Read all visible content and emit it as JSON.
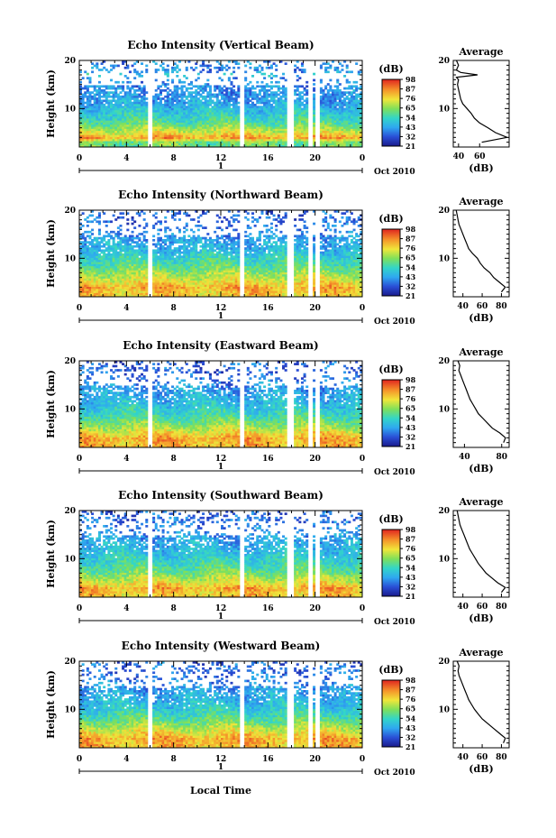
{
  "chart_data": [
    {
      "type": "heatmap",
      "title": "Echo Intensity (Vertical Beam)",
      "ylabel": "Height (km)",
      "xlim": [
        0,
        24
      ],
      "ylim": [
        2,
        20
      ],
      "x_ticks": [
        "0",
        "4",
        "8",
        "12",
        "16",
        "20",
        "0"
      ],
      "y_ticks": [
        "10",
        "20"
      ],
      "date_label": "Oct 2010",
      "day_marker": "1",
      "colorbar": {
        "unit": "(dB)",
        "ticks": [
          "98",
          "87",
          "76",
          "65",
          "54",
          "43",
          "32",
          "21"
        ],
        "range": [
          21,
          98
        ]
      },
      "data_gaps_hours": [
        [
          5.7,
          6.1
        ],
        [
          13.6,
          14.1
        ],
        [
          17.6,
          18.1
        ],
        [
          19.4,
          19.9
        ],
        [
          20.1,
          20.3
        ]
      ],
      "average_profile": {
        "title": "Average",
        "xlabel": "(dB)",
        "ylabel": "",
        "xlim": [
          35,
          88
        ],
        "x_ticks": [
          "40",
          "60"
        ],
        "y_ticks": [
          "10",
          "20"
        ],
        "height_km": [
          3,
          4,
          5,
          6,
          7,
          8,
          9,
          10,
          11,
          12,
          13,
          14,
          15,
          16,
          16.5,
          17,
          17.5,
          18,
          19,
          20
        ],
        "db": [
          62,
          86,
          75,
          68,
          60,
          55,
          52,
          48,
          44,
          42,
          41,
          40,
          39,
          40,
          38,
          58,
          42,
          38,
          40,
          38
        ]
      }
    },
    {
      "type": "heatmap",
      "title": "Echo Intensity (Northward Beam)",
      "ylabel": "Height (km)",
      "xlim": [
        0,
        24
      ],
      "ylim": [
        2,
        20
      ],
      "x_ticks": [
        "0",
        "4",
        "8",
        "12",
        "16",
        "20",
        "0"
      ],
      "y_ticks": [
        "10",
        "20"
      ],
      "date_label": "Oct 2010",
      "day_marker": "1",
      "colorbar": {
        "unit": "(dB)",
        "ticks": [
          "98",
          "87",
          "76",
          "65",
          "54",
          "43",
          "32",
          "21"
        ],
        "range": [
          21,
          98
        ]
      },
      "data_gaps_hours": [
        [
          5.7,
          6.1
        ],
        [
          13.6,
          14.1
        ],
        [
          17.6,
          18.1
        ],
        [
          19.4,
          19.9
        ],
        [
          20.1,
          20.3
        ]
      ],
      "average_profile": {
        "title": "Average",
        "xlabel": "(dB)",
        "ylabel": "",
        "xlim": [
          30,
          88
        ],
        "x_ticks": [
          "40",
          "60",
          "80"
        ],
        "y_ticks": [
          "10",
          "20"
        ],
        "height_km": [
          3,
          4,
          5,
          6,
          7,
          8,
          9,
          10,
          11,
          12,
          13,
          14,
          15,
          16,
          17,
          18,
          19,
          20
        ],
        "db": [
          80,
          84,
          78,
          72,
          68,
          62,
          58,
          55,
          50,
          46,
          44,
          42,
          40,
          38,
          36,
          35,
          34,
          33
        ]
      }
    },
    {
      "type": "heatmap",
      "title": "Echo Intensity (Eastward Beam)",
      "ylabel": "Height (km)",
      "xlim": [
        0,
        24
      ],
      "ylim": [
        2,
        20
      ],
      "x_ticks": [
        "0",
        "4",
        "8",
        "12",
        "16",
        "20",
        "0"
      ],
      "y_ticks": [
        "10",
        "20"
      ],
      "date_label": "Oct 2010",
      "day_marker": "1",
      "colorbar": {
        "unit": "(dB)",
        "ticks": [
          "98",
          "87",
          "76",
          "65",
          "54",
          "43",
          "32",
          "21"
        ],
        "range": [
          21,
          98
        ]
      },
      "data_gaps_hours": [
        [
          5.7,
          6.1
        ],
        [
          13.6,
          14.1
        ],
        [
          17.6,
          18.1
        ],
        [
          19.4,
          19.9
        ],
        [
          20.1,
          20.3
        ]
      ],
      "average_profile": {
        "title": "Average",
        "xlabel": "(dB)",
        "ylabel": "",
        "xlim": [
          28,
          88
        ],
        "x_ticks": [
          "40",
          "80"
        ],
        "y_ticks": [
          "10",
          "20"
        ],
        "height_km": [
          3,
          4,
          5,
          6,
          7,
          8,
          9,
          10,
          11,
          12,
          13,
          14,
          15,
          16,
          17,
          18,
          19,
          20
        ],
        "db": [
          82,
          84,
          78,
          70,
          65,
          60,
          55,
          52,
          49,
          46,
          44,
          42,
          40,
          38,
          36,
          34,
          35,
          33
        ]
      }
    },
    {
      "type": "heatmap",
      "title": "Echo Intensity (Southward Beam)",
      "ylabel": "Height (km)",
      "xlim": [
        0,
        24
      ],
      "ylim": [
        2,
        20
      ],
      "x_ticks": [
        "0",
        "4",
        "8",
        "12",
        "16",
        "20",
        "0"
      ],
      "y_ticks": [
        "10",
        "20"
      ],
      "date_label": "Oct 2010",
      "day_marker": "1",
      "colorbar": {
        "unit": "(dB)",
        "ticks": [
          "98",
          "87",
          "76",
          "65",
          "54",
          "43",
          "32",
          "21"
        ],
        "range": [
          21,
          98
        ]
      },
      "data_gaps_hours": [
        [
          5.7,
          6.1
        ],
        [
          13.6,
          14.1
        ],
        [
          17.6,
          18.1
        ],
        [
          19.4,
          19.9
        ],
        [
          20.1,
          20.3
        ]
      ],
      "average_profile": {
        "title": "Average",
        "xlabel": "(dB)",
        "ylabel": "",
        "xlim": [
          30,
          88
        ],
        "x_ticks": [
          "40",
          "60",
          "80"
        ],
        "y_ticks": [
          "10",
          "20"
        ],
        "height_km": [
          3,
          4,
          5,
          6,
          7,
          8,
          9,
          10,
          11,
          12,
          13,
          14,
          15,
          16,
          17,
          18,
          19,
          20
        ],
        "db": [
          80,
          84,
          76,
          70,
          64,
          60,
          56,
          53,
          50,
          47,
          45,
          43,
          41,
          39,
          37,
          36,
          35,
          34
        ]
      }
    },
    {
      "type": "heatmap",
      "title": "Echo Intensity (Westward Beam)",
      "ylabel": "Height (km)",
      "xlim": [
        0,
        24
      ],
      "ylim": [
        2,
        20
      ],
      "x_ticks": [
        "0",
        "4",
        "8",
        "12",
        "16",
        "20",
        "0"
      ],
      "y_ticks": [
        "10",
        "20"
      ],
      "date_label": "Oct 2010",
      "day_marker": "1",
      "colorbar": {
        "unit": "(dB)",
        "ticks": [
          "98",
          "87",
          "76",
          "65",
          "54",
          "43",
          "32",
          "21"
        ],
        "range": [
          21,
          98
        ]
      },
      "data_gaps_hours": [
        [
          5.7,
          6.1
        ],
        [
          13.6,
          14.1
        ],
        [
          17.6,
          18.1
        ],
        [
          19.4,
          19.9
        ],
        [
          20.1,
          20.3
        ]
      ],
      "average_profile": {
        "title": "Average",
        "xlabel": "(dB)",
        "ylabel": "",
        "xlim": [
          30,
          88
        ],
        "x_ticks": [
          "40",
          "60",
          "80"
        ],
        "y_ticks": [
          "10",
          "20"
        ],
        "height_km": [
          3,
          4,
          5,
          6,
          7,
          8,
          9,
          10,
          11,
          12,
          13,
          14,
          15,
          16,
          17,
          18,
          19,
          20
        ],
        "db": [
          82,
          84,
          78,
          72,
          66,
          60,
          56,
          52,
          49,
          46,
          44,
          42,
          40,
          38,
          36,
          35,
          36,
          34
        ]
      }
    }
  ],
  "xaxis_label": "Local Time"
}
